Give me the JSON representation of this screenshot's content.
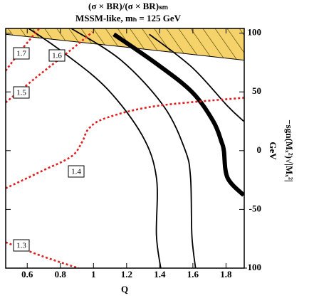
{
  "chart_data": {
    "type": "contour",
    "title": "(σ × BR)/(σ × BR)ₛₘ",
    "subtitle": "MSSM-like, mₕ = 125 GeV",
    "x_label": "Q",
    "y_label": "−sgn(Mₓ²)√|Mₓ²|",
    "y_unit": "GeV",
    "xlim": [
      0.47,
      1.91
    ],
    "ylim": [
      -100,
      104
    ],
    "xticks": [
      0.6,
      0.8,
      1.0,
      1.2,
      1.4,
      1.6,
      1.8
    ],
    "yticks": [
      -100,
      -50,
      0,
      50,
      100
    ],
    "band": {
      "color": "#f5d36a",
      "x": [
        0.47,
        1.2,
        1.91
      ],
      "y": [
        99,
        88,
        77
      ]
    },
    "lines": [
      {
        "color": "#000000",
        "x": [
          0.609,
          0.823,
          1.08,
          1.294,
          1.38,
          1.38,
          1.406
        ],
        "y": [
          104,
          83,
          53,
          13,
          -23,
          -72,
          -100
        ]
      },
      {
        "color": "#000000",
        "x": [
          0.866,
          1.166,
          1.423,
          1.552,
          1.586,
          1.594,
          1.616
        ],
        "y": [
          104,
          77,
          38,
          1,
          -23,
          -72,
          -100
        ]
      },
      {
        "color": "#000000",
        "thick": true,
        "x": [
          1.123,
          1.38,
          1.594,
          1.723,
          1.774,
          1.787,
          1.809,
          1.907
        ],
        "y": [
          99,
          74,
          50,
          25,
          7,
          0,
          -23,
          -38
        ]
      },
      {
        "color": "#000000",
        "x": [
          1.337,
          1.594,
          1.809,
          1.907
        ],
        "y": [
          99,
          71,
          38,
          25
        ]
      },
      {
        "color": "#e02020",
        "dashed": true,
        "x": [
          0.47,
          0.566,
          0.673
        ],
        "y": [
          68,
          86,
          104
        ]
      },
      {
        "color": "#e02020",
        "dashed": true,
        "x": [
          0.47,
          0.651,
          0.866,
          0.994
        ],
        "y": [
          41,
          62,
          86,
          101
        ]
      },
      {
        "color": "#e02020",
        "dashed": true,
        "x": [
          0.47,
          0.694,
          0.866,
          0.93,
          0.973,
          1.08,
          1.38,
          1.907
        ],
        "y": [
          -32,
          -17,
          -5,
          7,
          19,
          28,
          38,
          45
        ]
      },
      {
        "color": "#e02020",
        "dashed": true,
        "x": [
          0.47,
          0.694,
          0.909
        ],
        "y": [
          -78,
          -90,
          -100
        ]
      }
    ],
    "contour_labels": [
      "1.7",
      "1.6",
      "1.5",
      "1.4",
      "1.3"
    ]
  }
}
